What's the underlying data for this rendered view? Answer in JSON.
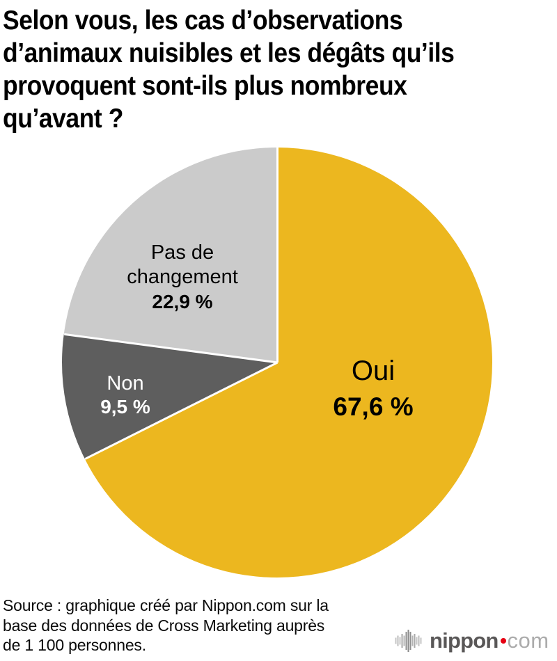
{
  "title": {
    "lines": [
      "Selon vous, les cas d’observations",
      "d’animaux nuisibles et les dégâts qu’ils",
      "provoquent sont-ils plus nombreux",
      "qu’avant ?"
    ]
  },
  "chart_data": {
    "type": "pie",
    "title": "Selon vous, les cas d’observations d’animaux nuisibles et les dégâts qu’ils provoquent sont-ils plus nombreux qu’avant ?",
    "unit": "%",
    "start_angle_deg": 0,
    "direction": "clockwise",
    "separator_color": "#ffffff",
    "background": "#ffffff",
    "slices": [
      {
        "label": "Oui",
        "value": 67.6,
        "value_display": "67,6 %",
        "color": "#ecb71f",
        "label_color": "#000000"
      },
      {
        "label": "Non",
        "value": 9.5,
        "value_display": "9,5 %",
        "color": "#5e5e5e",
        "label_color": "#ffffff"
      },
      {
        "label": "Pas de changement",
        "value": 22.9,
        "value_display": "22,9 %",
        "color": "#cbcbcb",
        "label_color": "#000000"
      }
    ]
  },
  "source": {
    "lines": [
      "Source : graphique créé par Nippon.com sur la",
      "base des données de Cross Marketing auprès",
      "de 1 100 personnes."
    ]
  },
  "logo": {
    "word": "nippon",
    "tld": "com"
  }
}
